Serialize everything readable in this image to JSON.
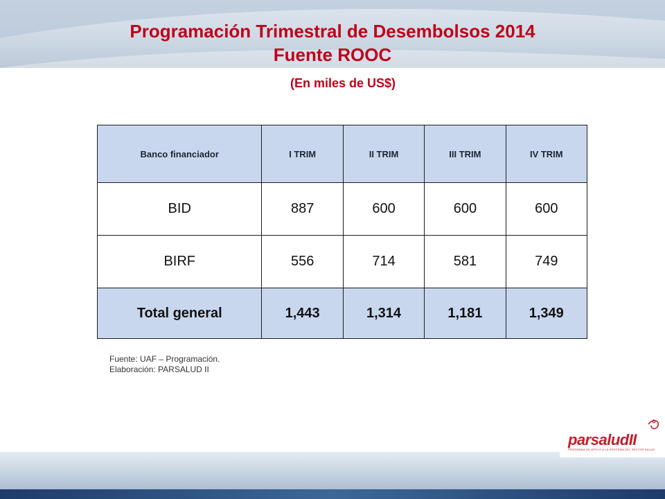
{
  "title": {
    "line1": "Programación Trimestral de Desembolsos 2014",
    "line2": "Fuente ROOC"
  },
  "subtitle": "(En miles de US$)",
  "table": {
    "headers": [
      "Banco financiador",
      "I TRIM",
      "II TRIM",
      "III  TRIM",
      "IV TRIM"
    ],
    "rows": [
      [
        "BID",
        "887",
        "600",
        "600",
        "600"
      ],
      [
        "BIRF",
        "556",
        "714",
        "581",
        "749"
      ]
    ],
    "total": [
      "Total general",
      "1,443",
      "1,314",
      "1,181",
      "1,349"
    ]
  },
  "source": {
    "line1": "Fuente: UAF – Programación.",
    "line2": "Elaboración: PARSALUD II"
  },
  "logo": {
    "text": "parsaludII",
    "subtext": "PROGRAMA DE APOYO A LA REFORMA DEL SECTOR SALUD"
  },
  "colors": {
    "title": "#c0001a",
    "header_fill": "#c9d7ee"
  }
}
